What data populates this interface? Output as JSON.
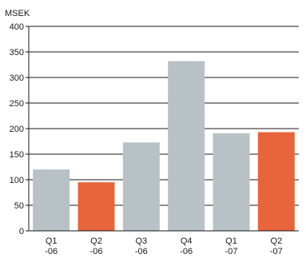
{
  "chart_data": {
    "type": "bar",
    "unit_label": "MSEK",
    "categories": [
      {
        "line1": "Q1",
        "line2": "-06"
      },
      {
        "line1": "Q2",
        "line2": "-06"
      },
      {
        "line1": "Q3",
        "line2": "-06"
      },
      {
        "line1": "Q4",
        "line2": "-06"
      },
      {
        "line1": "Q1",
        "line2": "-07"
      },
      {
        "line1": "Q2",
        "line2": "-07"
      }
    ],
    "values": [
      120,
      95,
      173,
      332,
      191,
      193
    ],
    "ylim": [
      0,
      400
    ],
    "yticks": [
      0,
      50,
      100,
      150,
      200,
      250,
      300,
      350,
      400
    ],
    "grid": true,
    "colors": {
      "default_bar": "#b8c2c6",
      "highlight_bar": "#e8643a",
      "grid": "#1a1a1a",
      "axis": "#1a1a1a"
    },
    "highlight_indices": [
      1,
      5
    ]
  }
}
